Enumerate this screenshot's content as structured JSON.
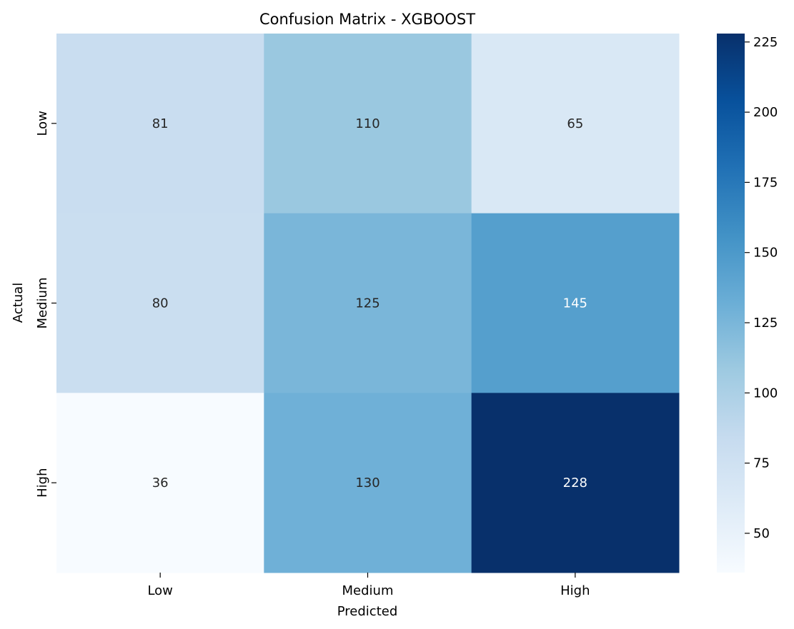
{
  "chart_data": {
    "type": "heatmap",
    "title": "Confusion Matrix - XGBOOST",
    "xlabel": "Predicted",
    "ylabel": "Actual",
    "x_categories": [
      "Low",
      "Medium",
      "High"
    ],
    "y_categories": [
      "Low",
      "Medium",
      "High"
    ],
    "values": [
      [
        81,
        110,
        65
      ],
      [
        80,
        125,
        145
      ],
      [
        36,
        130,
        228
      ]
    ],
    "colormap": "Blues",
    "color_range": [
      36,
      228
    ],
    "colorbar_ticks": [
      50,
      75,
      100,
      125,
      150,
      175,
      200,
      225
    ]
  }
}
